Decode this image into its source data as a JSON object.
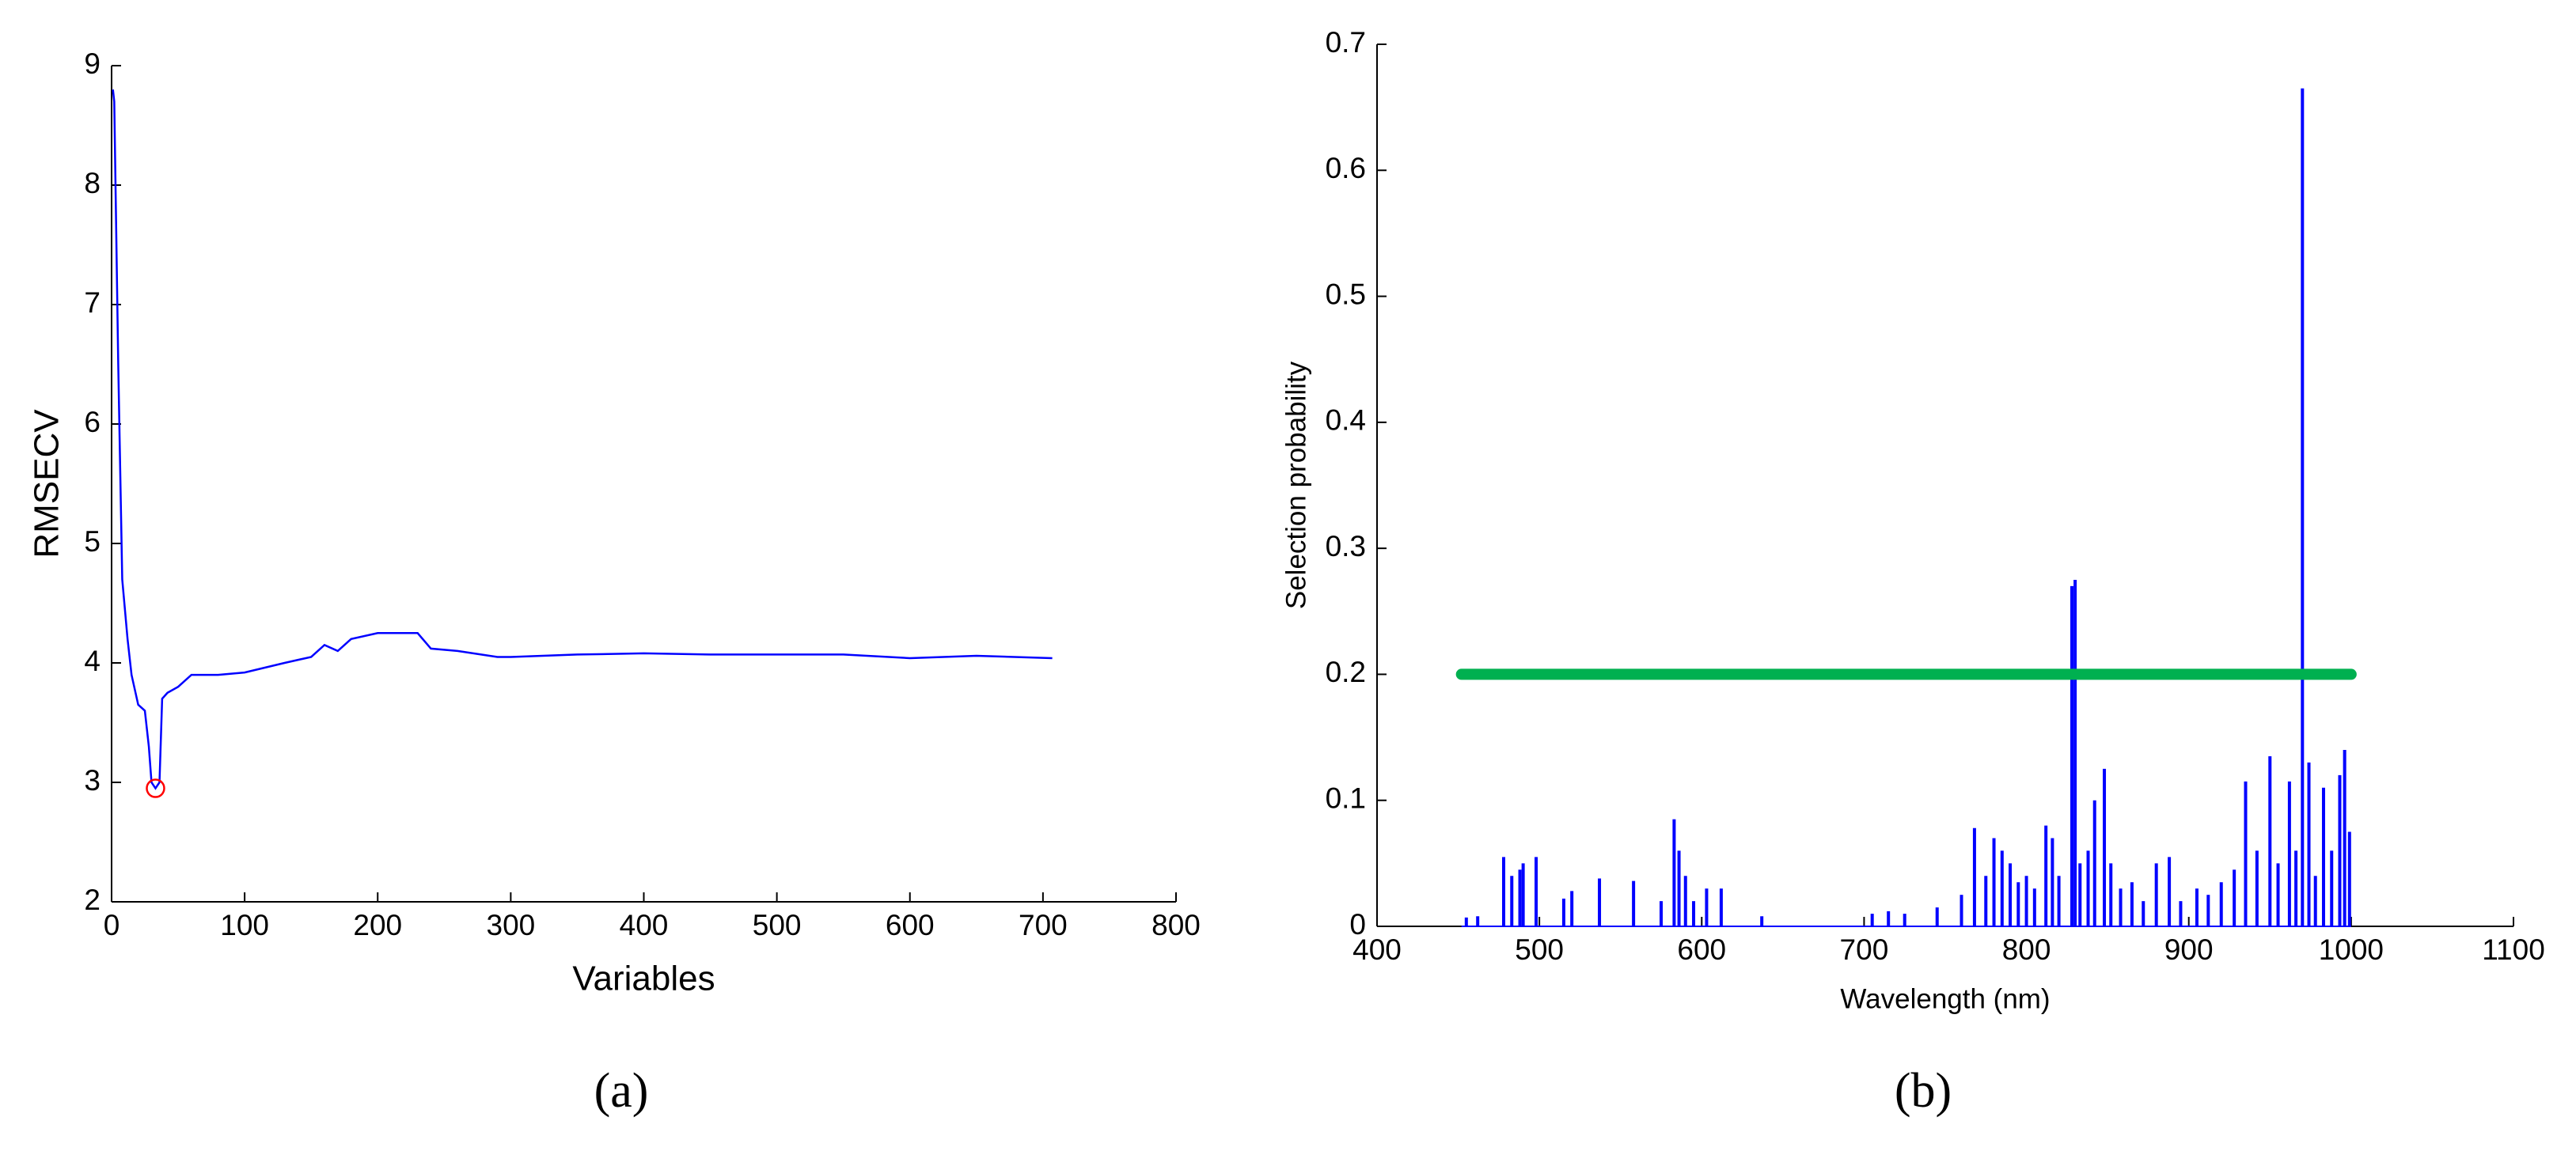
{
  "chart_data": [
    {
      "type": "line",
      "xlabel": "Variables",
      "ylabel": "RMSECV",
      "panel": "(a)",
      "x": [
        1,
        2,
        5,
        8,
        12,
        15,
        20,
        25,
        28,
        30,
        33,
        36,
        38,
        42,
        50,
        60,
        80,
        100,
        130,
        150,
        160,
        170,
        180,
        200,
        230,
        240,
        260,
        290,
        300,
        350,
        400,
        450,
        500,
        550,
        600,
        650,
        707
      ],
      "values": [
        8.8,
        8.7,
        6.5,
        4.7,
        4.2,
        3.9,
        3.65,
        3.6,
        3.3,
        3.0,
        2.95,
        3.0,
        3.7,
        3.75,
        3.8,
        3.9,
        3.9,
        3.92,
        4.0,
        4.05,
        4.15,
        4.1,
        4.2,
        4.25,
        4.25,
        4.12,
        4.1,
        4.05,
        4.05,
        4.07,
        4.08,
        4.07,
        4.07,
        4.07,
        4.04,
        4.06,
        4.04
      ],
      "color": "#0000ff",
      "marker": {
        "x": 33,
        "y": 2.95,
        "color": "#ff0000"
      },
      "xlim": [
        0,
        800
      ],
      "xticks": [
        0,
        100,
        200,
        300,
        400,
        500,
        600,
        700,
        800
      ],
      "ylim": [
        2,
        9
      ],
      "yticks": [
        2,
        3,
        4,
        5,
        6,
        7,
        8,
        9
      ]
    },
    {
      "type": "bar",
      "xlabel": "Wavelength (nm)",
      "ylabel": "Selection probability",
      "panel": "(b)",
      "x": [
        455,
        462,
        478,
        483,
        488,
        490,
        498,
        515,
        520,
        537,
        558,
        575,
        583,
        586,
        590,
        595,
        603,
        612,
        637,
        705,
        715,
        725,
        745,
        760,
        768,
        775,
        780,
        785,
        790,
        795,
        800,
        805,
        812,
        816,
        820,
        828,
        830,
        833,
        838,
        842,
        848,
        852,
        858,
        865,
        872,
        880,
        888,
        895,
        905,
        912,
        920,
        928,
        935,
        942,
        950,
        955,
        962,
        966,
        970,
        974,
        978,
        983,
        988,
        993,
        996,
        999
      ],
      "values": [
        0.007,
        0.008,
        0.055,
        0.04,
        0.045,
        0.05,
        0.055,
        0.022,
        0.028,
        0.038,
        0.036,
        0.02,
        0.085,
        0.06,
        0.04,
        0.02,
        0.03,
        0.03,
        0.008,
        0.01,
        0.012,
        0.01,
        0.015,
        0.025,
        0.078,
        0.04,
        0.07,
        0.06,
        0.05,
        0.035,
        0.04,
        0.03,
        0.08,
        0.07,
        0.04,
        0.27,
        0.275,
        0.05,
        0.06,
        0.1,
        0.125,
        0.05,
        0.03,
        0.035,
        0.02,
        0.05,
        0.055,
        0.02,
        0.03,
        0.025,
        0.035,
        0.045,
        0.115,
        0.06,
        0.135,
        0.05,
        0.115,
        0.06,
        0.665,
        0.13,
        0.04,
        0.11,
        0.06,
        0.12,
        0.14,
        0.075
      ],
      "color": "#0000ff",
      "threshold": {
        "value": 0.2,
        "x": [
          452,
          1000
        ],
        "color": "#00b050"
      },
      "xlim": [
        400,
        1100
      ],
      "xticks": [
        400,
        500,
        600,
        700,
        800,
        900,
        1000,
        1100
      ],
      "ylim": [
        0,
        0.7
      ],
      "yticks": [
        0,
        0.1,
        0.2,
        0.3,
        0.4,
        0.5,
        0.6,
        0.7
      ]
    }
  ]
}
